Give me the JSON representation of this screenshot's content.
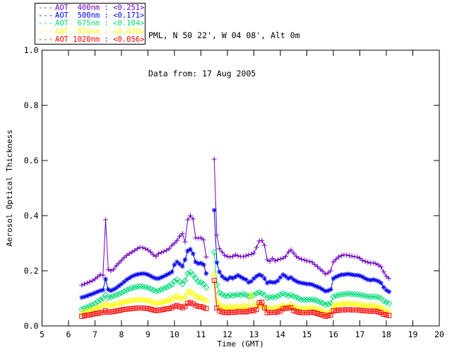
{
  "header": {
    "line1": "PML, N 50 22', W 04 08', Alt 0m",
    "line2": "Data from: 17 Aug 2005"
  },
  "legend": {
    "items": [
      {
        "label": "AOT  400nm : <0.251>",
        "dash": "---",
        "color": "#7000c0"
      },
      {
        "label": "AOT  500nm : <0.171>",
        "dash": "---",
        "color": "#0000ee"
      },
      {
        "label": "AOT  675nm : <0.104>",
        "dash": "---",
        "color": "#00dc78"
      },
      {
        "label": "AOT  870nm : <0.070>",
        "dash": "---",
        "color": "#ffff00"
      },
      {
        "label": "AOT 1020nm : <0.056>",
        "dash": "---",
        "color": "#ff0000"
      }
    ]
  },
  "chart_data": {
    "type": "line",
    "title": "",
    "xlabel": "Time (GMT)",
    "ylabel": "Aerosol Optical Thickness",
    "xlim": [
      5,
      20
    ],
    "ylim": [
      0.0,
      1.0
    ],
    "x_ticks": [
      5,
      6,
      7,
      8,
      9,
      10,
      11,
      12,
      13,
      14,
      15,
      16,
      17,
      18,
      19,
      20
    ],
    "y_ticks": [
      "0.0",
      "0.2",
      "0.4",
      "0.6",
      "0.8",
      "1.0"
    ],
    "grid": false,
    "legend_position": "top-left-outside",
    "x": [
      6.5,
      6.6,
      6.7,
      6.8,
      6.9,
      7.0,
      7.1,
      7.2,
      7.3,
      7.4,
      7.5,
      7.6,
      7.7,
      7.8,
      7.9,
      8.0,
      8.1,
      8.2,
      8.3,
      8.4,
      8.5,
      8.6,
      8.7,
      8.8,
      8.9,
      9.0,
      9.1,
      9.2,
      9.3,
      9.4,
      9.5,
      9.6,
      9.7,
      9.8,
      9.9,
      10.0,
      10.1,
      10.2,
      10.3,
      10.4,
      10.5,
      10.6,
      10.7,
      10.8,
      10.9,
      11.0,
      11.1,
      11.2,
      11.3,
      11.4,
      11.5,
      11.6,
      11.7,
      11.8,
      11.9,
      12.0,
      12.1,
      12.2,
      12.3,
      12.4,
      12.5,
      12.6,
      12.7,
      12.8,
      12.9,
      13.0,
      13.1,
      13.2,
      13.3,
      13.4,
      13.5,
      13.6,
      13.7,
      13.8,
      13.9,
      14.0,
      14.1,
      14.2,
      14.3,
      14.4,
      14.5,
      14.6,
      14.7,
      14.8,
      14.9,
      15.0,
      15.1,
      15.2,
      15.3,
      15.4,
      15.5,
      15.6,
      15.7,
      15.8,
      15.9,
      16.0,
      16.1,
      16.2,
      16.3,
      16.4,
      16.5,
      16.6,
      16.7,
      16.8,
      16.9,
      17.0,
      17.1,
      17.2,
      17.3,
      17.4,
      17.5,
      17.6,
      17.7,
      17.8,
      17.9,
      18.0,
      18.1
    ],
    "series": [
      {
        "name": "AOT 400nm",
        "wavelength_nm": 400,
        "mean_label": "<0.251>",
        "color": "#7000c0",
        "marker": "plus",
        "values": [
          0.148,
          0.152,
          0.156,
          0.16,
          0.164,
          0.17,
          0.178,
          0.186,
          0.184,
          0.385,
          0.205,
          0.2,
          0.205,
          0.218,
          0.228,
          0.238,
          0.248,
          0.256,
          0.262,
          0.268,
          0.274,
          0.28,
          0.285,
          0.284,
          0.28,
          0.276,
          0.268,
          0.258,
          0.252,
          0.262,
          0.266,
          0.27,
          0.274,
          0.28,
          0.292,
          0.3,
          0.31,
          0.325,
          0.335,
          0.305,
          0.385,
          0.4,
          0.388,
          0.32,
          0.318,
          0.32,
          0.312,
          0.25,
          null,
          null,
          0.605,
          0.33,
          0.28,
          0.268,
          0.256,
          0.252,
          0.25,
          0.252,
          0.258,
          0.254,
          0.252,
          0.252,
          0.254,
          0.258,
          0.26,
          0.264,
          0.285,
          0.308,
          0.31,
          0.292,
          0.24,
          0.234,
          0.245,
          0.236,
          0.24,
          0.243,
          0.246,
          0.252,
          0.268,
          0.276,
          0.264,
          0.252,
          0.246,
          0.242,
          0.239,
          0.236,
          0.234,
          0.231,
          0.222,
          0.215,
          0.206,
          0.198,
          0.188,
          0.192,
          0.2,
          0.232,
          0.242,
          0.25,
          0.255,
          0.258,
          0.257,
          0.255,
          0.253,
          0.251,
          0.25,
          0.246,
          0.238,
          0.234,
          0.231,
          0.228,
          0.229,
          0.226,
          0.221,
          0.214,
          0.196,
          0.18,
          0.172
        ]
      },
      {
        "name": "AOT 500nm",
        "wavelength_nm": 500,
        "mean_label": "<0.171>",
        "color": "#0000ee",
        "marker": "asterisk",
        "values": [
          0.103,
          0.106,
          0.109,
          0.113,
          0.116,
          0.12,
          0.124,
          0.128,
          0.13,
          0.17,
          0.132,
          0.128,
          0.132,
          0.138,
          0.145,
          0.152,
          0.16,
          0.168,
          0.174,
          0.18,
          0.184,
          0.187,
          0.189,
          0.19,
          0.189,
          0.186,
          0.181,
          0.176,
          0.172,
          0.172,
          0.176,
          0.18,
          0.185,
          0.19,
          0.196,
          0.222,
          0.232,
          0.224,
          0.216,
          0.24,
          0.272,
          0.278,
          0.262,
          0.232,
          0.226,
          0.228,
          0.222,
          0.19,
          null,
          null,
          0.42,
          0.23,
          0.196,
          0.18,
          0.172,
          0.168,
          0.176,
          0.173,
          0.178,
          0.184,
          0.178,
          0.172,
          0.168,
          0.158,
          0.162,
          0.172,
          0.18,
          0.186,
          0.182,
          0.172,
          0.156,
          0.16,
          0.158,
          0.158,
          0.164,
          0.176,
          0.186,
          0.18,
          0.172,
          0.176,
          0.168,
          0.162,
          0.158,
          0.156,
          0.154,
          0.152,
          0.152,
          0.15,
          0.146,
          0.142,
          0.138,
          0.132,
          0.126,
          0.128,
          0.132,
          0.172,
          0.178,
          0.182,
          0.186,
          0.186,
          0.188,
          0.188,
          0.186,
          0.184,
          0.184,
          0.182,
          0.178,
          0.172,
          0.168,
          0.166,
          0.168,
          0.166,
          0.162,
          0.156,
          0.14,
          0.13,
          0.124
        ]
      },
      {
        "name": "AOT 675nm",
        "wavelength_nm": 675,
        "mean_label": "<0.104>",
        "color": "#00dc78",
        "marker": "diamond",
        "values": [
          0.06,
          0.064,
          0.068,
          0.072,
          0.076,
          0.082,
          0.088,
          0.094,
          0.1,
          0.112,
          0.103,
          0.104,
          0.108,
          0.112,
          0.116,
          0.12,
          0.125,
          0.13,
          0.134,
          0.138,
          0.14,
          0.142,
          0.144,
          0.143,
          0.141,
          0.139,
          0.135,
          0.13,
          0.126,
          0.128,
          0.132,
          0.136,
          0.14,
          0.144,
          0.15,
          0.162,
          0.168,
          0.16,
          0.152,
          0.165,
          0.19,
          0.196,
          0.185,
          0.172,
          0.16,
          0.158,
          0.152,
          0.14,
          null,
          null,
          0.268,
          0.15,
          0.12,
          0.115,
          0.11,
          0.108,
          0.112,
          0.11,
          0.112,
          0.114,
          0.112,
          0.116,
          0.112,
          0.108,
          0.11,
          0.112,
          0.118,
          0.122,
          0.118,
          0.112,
          0.102,
          0.104,
          0.104,
          0.104,
          0.108,
          0.114,
          0.118,
          0.114,
          0.11,
          0.112,
          0.108,
          0.104,
          0.1,
          0.095,
          0.095,
          0.095,
          0.096,
          0.096,
          0.094,
          0.09,
          0.087,
          0.083,
          0.077,
          0.079,
          0.083,
          0.106,
          0.11,
          0.112,
          0.114,
          0.115,
          0.117,
          0.117,
          0.116,
          0.115,
          0.114,
          0.113,
          0.111,
          0.109,
          0.107,
          0.106,
          0.107,
          0.106,
          0.104,
          0.1,
          0.091,
          0.086,
          0.082
        ]
      },
      {
        "name": "AOT 870nm",
        "wavelength_nm": 870,
        "mean_label": "<0.070>",
        "color": "#ffff00",
        "marker": "triangle",
        "values": [
          0.048,
          0.051,
          0.054,
          0.057,
          0.06,
          0.064,
          0.068,
          0.071,
          0.074,
          0.082,
          0.075,
          0.076,
          0.078,
          0.08,
          0.083,
          0.086,
          0.088,
          0.09,
          0.092,
          0.093,
          0.094,
          0.095,
          0.096,
          0.095,
          0.094,
          0.093,
          0.09,
          0.086,
          0.083,
          0.084,
          0.086,
          0.089,
          0.092,
          0.094,
          0.098,
          0.106,
          0.11,
          0.104,
          0.098,
          0.106,
          0.122,
          0.126,
          0.118,
          0.11,
          0.104,
          0.102,
          0.098,
          0.092,
          null,
          null,
          0.19,
          0.092,
          0.076,
          0.072,
          0.069,
          0.067,
          0.07,
          0.068,
          0.07,
          0.072,
          0.07,
          0.072,
          0.07,
          0.072,
          0.114,
          0.073,
          0.074,
          0.077,
          0.075,
          0.071,
          0.063,
          0.065,
          0.065,
          0.065,
          0.068,
          0.072,
          0.075,
          0.072,
          0.07,
          0.079,
          0.072,
          0.068,
          0.065,
          0.063,
          0.064,
          0.064,
          0.065,
          0.066,
          0.064,
          0.061,
          0.058,
          0.055,
          0.048,
          0.05,
          0.054,
          0.074,
          0.077,
          0.079,
          0.08,
          0.081,
          0.082,
          0.082,
          0.081,
          0.08,
          0.079,
          0.078,
          0.077,
          0.075,
          0.074,
          0.073,
          0.074,
          0.073,
          0.071,
          0.068,
          0.06,
          0.056,
          0.053
        ]
      },
      {
        "name": "AOT 1020nm",
        "wavelength_nm": 1020,
        "mean_label": "<0.056>",
        "color": "#ff0000",
        "marker": "square",
        "values": [
          0.035,
          0.037,
          0.039,
          0.04,
          0.042,
          0.044,
          0.046,
          0.048,
          0.049,
          0.055,
          0.05,
          0.051,
          0.052,
          0.054,
          0.056,
          0.058,
          0.06,
          0.061,
          0.062,
          0.063,
          0.064,
          0.065,
          0.065,
          0.065,
          0.064,
          0.063,
          0.061,
          0.058,
          0.056,
          0.057,
          0.058,
          0.06,
          0.062,
          0.063,
          0.066,
          0.071,
          0.074,
          0.07,
          0.066,
          0.071,
          0.082,
          0.085,
          0.08,
          0.074,
          0.071,
          0.07,
          0.067,
          0.063,
          null,
          null,
          0.165,
          0.065,
          0.054,
          0.051,
          0.049,
          0.048,
          0.05,
          0.049,
          0.05,
          0.052,
          0.051,
          0.052,
          0.051,
          0.053,
          0.057,
          0.055,
          0.06,
          0.084,
          0.086,
          0.066,
          0.048,
          0.049,
          0.049,
          0.049,
          0.051,
          0.054,
          0.062,
          0.064,
          0.065,
          0.066,
          0.056,
          0.052,
          0.05,
          0.048,
          0.048,
          0.048,
          0.049,
          0.05,
          0.048,
          0.045,
          0.042,
          0.04,
          0.035,
          0.037,
          0.04,
          0.054,
          0.056,
          0.057,
          0.058,
          0.058,
          0.059,
          0.059,
          0.058,
          0.058,
          0.058,
          0.057,
          0.056,
          0.055,
          0.054,
          0.053,
          0.054,
          0.053,
          0.051,
          0.048,
          0.042,
          0.04,
          0.038
        ]
      }
    ]
  }
}
